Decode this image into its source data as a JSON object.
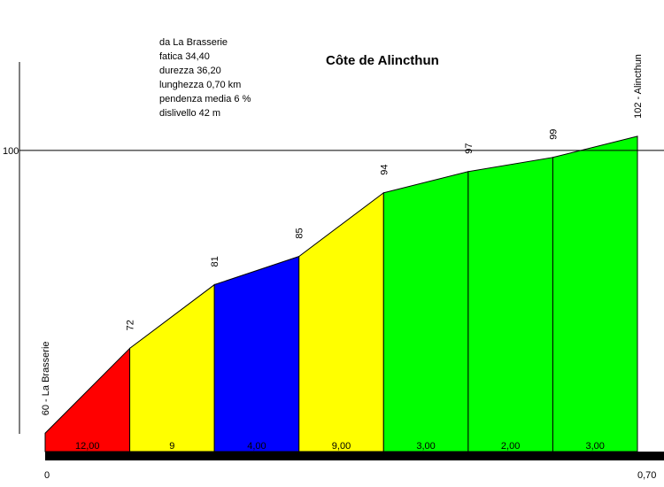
{
  "chart_data": {
    "type": "area",
    "title": "Côte de Alincthun",
    "info": [
      "da La Brasserie",
      "fatica 34,40",
      "durezza 36,20",
      "lunghezza 0,70 km",
      "pendenza media 6 %",
      "dislivello 42 m"
    ],
    "x": [
      0,
      0.1,
      0.2,
      0.3,
      0.4,
      0.5,
      0.6,
      0.7
    ],
    "elevation": [
      60,
      72,
      81,
      85,
      94,
      97,
      99,
      102
    ],
    "point_labels": [
      "60 - La Brasserie",
      "72",
      "81",
      "85",
      "94",
      "97",
      "99",
      "102 - Alincthun"
    ],
    "segments": [
      {
        "label": "12,00",
        "color": "#ff0000"
      },
      {
        "label": "9",
        "color": "#ffff00"
      },
      {
        "label": "4,00",
        "color": "#0000ff"
      },
      {
        "label": "9,00",
        "color": "#ffff00"
      },
      {
        "label": "3,00",
        "color": "#00ff00"
      },
      {
        "label": "2,00",
        "color": "#00ff00"
      },
      {
        "label": "3,00",
        "color": "#00ff00"
      }
    ],
    "y_tick_labels": [
      "100"
    ],
    "y_reference_line": 100,
    "x_tick_labels": [
      "0",
      "0,70"
    ],
    "xlim": [
      0,
      0.7
    ],
    "ylim": [
      57.4,
      112.5
    ],
    "grid": false
  }
}
